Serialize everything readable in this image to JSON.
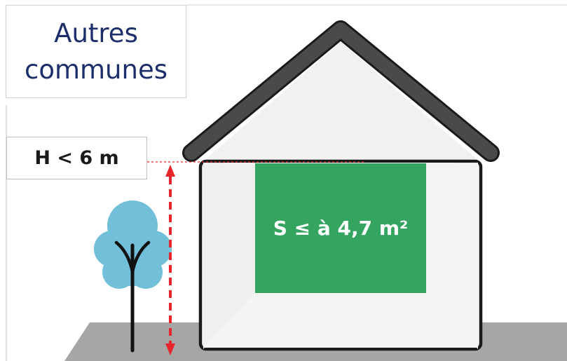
{
  "title": {
    "line1": "Autres",
    "line2": "communes"
  },
  "height_limit": {
    "label": "H < 6 m"
  },
  "surface": {
    "label": "S ≤ à 4,7 m²"
  },
  "colors": {
    "title_text": "#1c2f6b",
    "roof": "#4a4a4a",
    "window_panel": "#33a561",
    "tree_foliage": "#71bfd8",
    "ground": "#a6a6a6",
    "arrow": "#e8252b",
    "house_outline": "#1a1a1a"
  },
  "icons": [
    "house-icon",
    "tree-icon",
    "height-arrow-icon"
  ]
}
